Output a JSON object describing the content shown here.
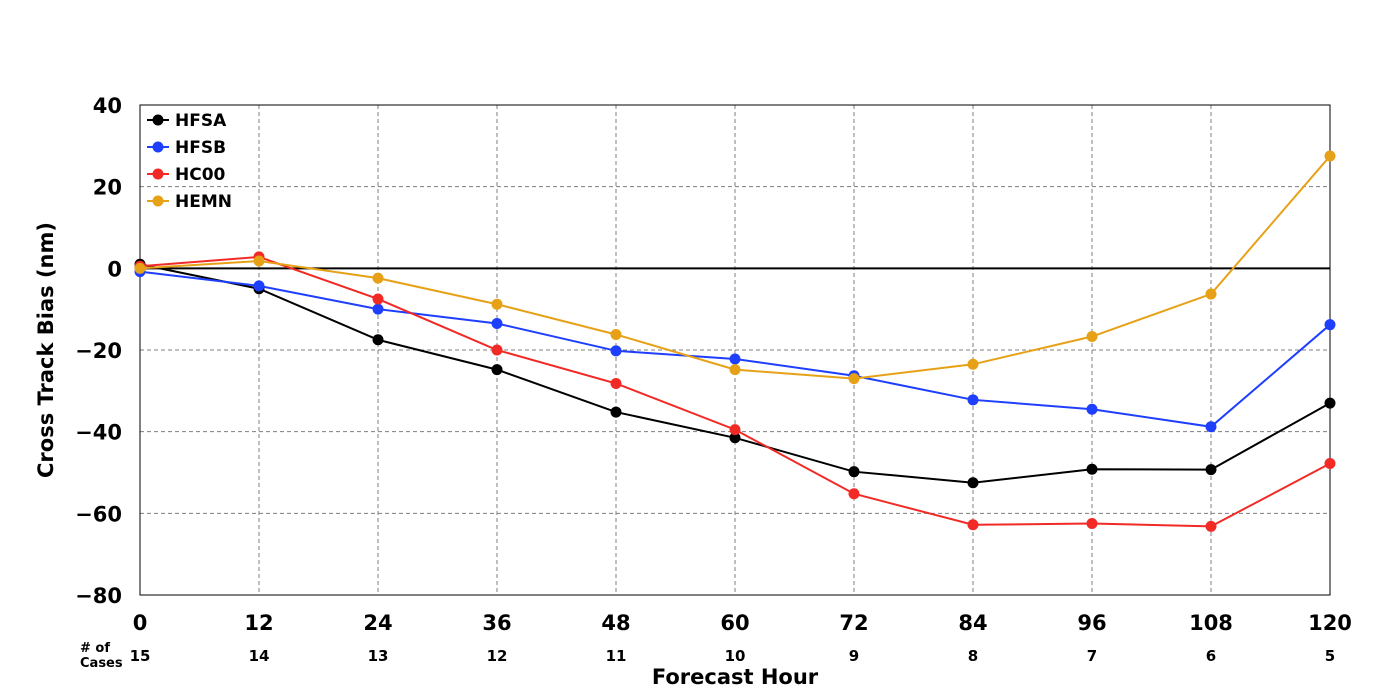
{
  "chart_data": {
    "type": "line",
    "xlabel": "Forecast Hour",
    "ylabel": "Cross Track Bias (nm)",
    "x": [
      0,
      12,
      24,
      36,
      48,
      60,
      72,
      84,
      96,
      108,
      120
    ],
    "xlim": [
      0,
      120
    ],
    "ylim": [
      -80,
      40
    ],
    "yticks": [
      40,
      20,
      0,
      -20,
      -40,
      -60,
      -80
    ],
    "ytick_labels": [
      "40",
      "20",
      "0",
      "−20",
      "−40",
      "−60",
      "−80"
    ],
    "grid": true,
    "zero_line": true,
    "legend_position": "top-left",
    "series": [
      {
        "name": "HFSA",
        "color": "#000000",
        "values": [
          1.0,
          -5.0,
          -17.5,
          -24.8,
          -35.2,
          -41.5,
          -49.8,
          -52.5,
          -49.2,
          -49.3,
          -33.0
        ]
      },
      {
        "name": "HFSB",
        "color": "#1f3fff",
        "values": [
          -0.8,
          -4.3,
          -10.0,
          -13.5,
          -20.2,
          -22.2,
          -26.3,
          -32.2,
          -34.5,
          -38.8,
          -13.8
        ]
      },
      {
        "name": "HC00",
        "color": "#f22a26",
        "values": [
          0.5,
          2.8,
          -7.5,
          -20.0,
          -28.2,
          -39.5,
          -55.2,
          -62.8,
          -62.5,
          -63.2,
          -47.8
        ]
      },
      {
        "name": "HEMN",
        "color": "#e6a117",
        "values": [
          0.0,
          1.8,
          -2.4,
          -8.8,
          -16.2,
          -24.8,
          -27.0,
          -23.5,
          -16.7,
          -6.3,
          27.5
        ]
      }
    ],
    "cases_label": "# of\nCases",
    "cases": [
      "15",
      "14",
      "13",
      "12",
      "11",
      "10",
      "9",
      "8",
      "7",
      "6",
      "5"
    ]
  }
}
